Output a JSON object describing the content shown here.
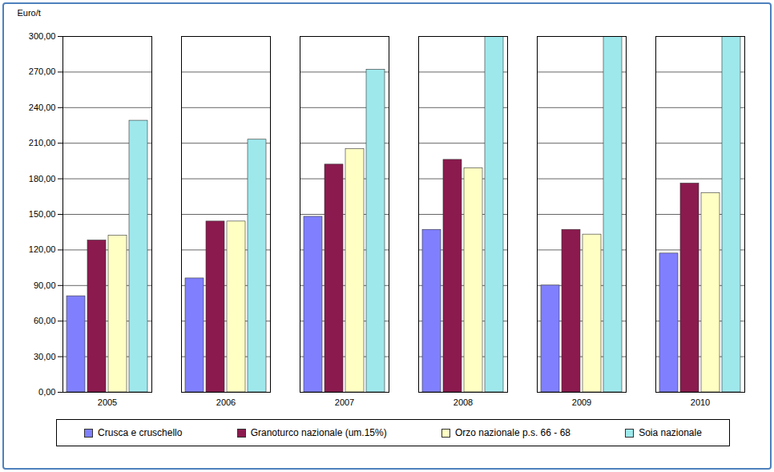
{
  "chart_data": {
    "type": "bar",
    "y_label": "Euro/t",
    "categories": [
      "2005",
      "2006",
      "2007",
      "2008",
      "2009",
      "2010"
    ],
    "series": [
      {
        "name": "Crusca e cruschello",
        "color": "#8080ff",
        "values": [
          81,
          96,
          148,
          137,
          90,
          117
        ]
      },
      {
        "name": "Granoturco nazionale (um.15%)",
        "color": "#8b1a4e",
        "values": [
          128,
          144,
          192,
          196,
          137,
          176
        ]
      },
      {
        "name": "Orzo nazionale p.s. 66 - 68",
        "color": "#ffffc4",
        "values": [
          132,
          144,
          205,
          189,
          133,
          168
        ]
      },
      {
        "name": "Soia nazionale",
        "color": "#9ee8ec",
        "values": [
          229,
          213,
          272,
          300,
          300,
          300
        ]
      }
    ],
    "ylim": [
      0,
      300
    ],
    "yticks": [
      {
        "value": 0,
        "label": "0,00"
      },
      {
        "value": 30,
        "label": "30,00"
      },
      {
        "value": 60,
        "label": "60,00"
      },
      {
        "value": 90,
        "label": "90,00"
      },
      {
        "value": 120,
        "label": "120,00"
      },
      {
        "value": 150,
        "label": "150,00"
      },
      {
        "value": 180,
        "label": "180,00"
      },
      {
        "value": 210,
        "label": "210,00"
      },
      {
        "value": 240,
        "label": "240,00"
      },
      {
        "value": 270,
        "label": "270,00"
      },
      {
        "value": 300,
        "label": "300,00"
      }
    ],
    "grid": true,
    "legend": "bottom"
  }
}
